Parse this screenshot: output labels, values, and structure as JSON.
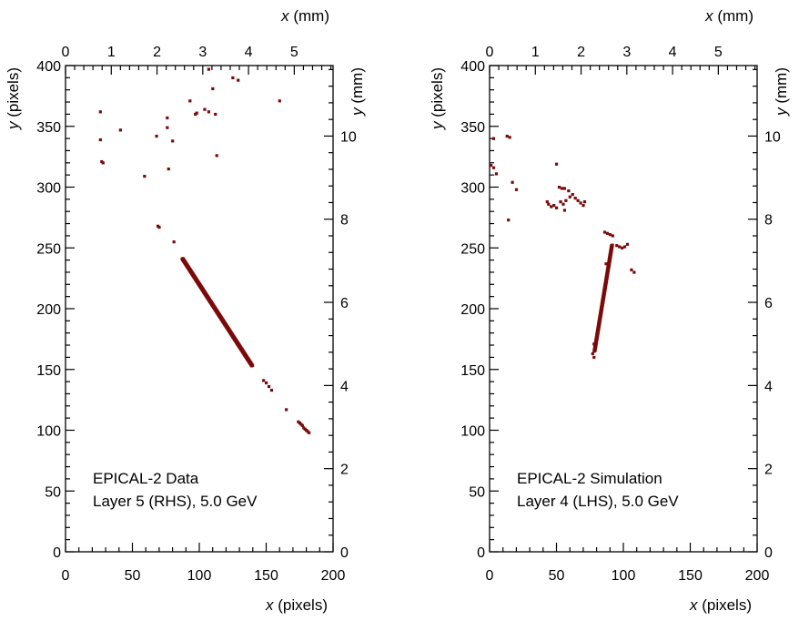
{
  "chart_data": [
    {
      "type": "scatter",
      "panel": "left",
      "annotation": [
        "EPICAL-2 Data",
        "Layer 5 (RHS), 5.0 GeV"
      ],
      "xlabel_bottom": {
        "var": "x",
        "unit": "(pixels)"
      },
      "ylabel_left": {
        "var": "y",
        "unit": "(pixels)"
      },
      "xlabel_top": {
        "var": "x",
        "unit": "(mm)"
      },
      "ylabel_right": {
        "var": "y",
        "unit": "(mm)"
      },
      "xlim": [
        0,
        200
      ],
      "ylim": [
        0,
        400
      ],
      "x_ticks": [
        "0",
        "50",
        "100",
        "150",
        "200"
      ],
      "y_ticks": [
        "0",
        "50",
        "100",
        "150",
        "200",
        "250",
        "300",
        "350",
        "400"
      ],
      "x_mm_ticks": [
        "0",
        "1",
        "2",
        "3",
        "4",
        "5"
      ],
      "y_mm_ticks": [
        "0",
        "2",
        "4",
        "6",
        "8",
        "10"
      ],
      "point_color": "#7a0a0a",
      "points": [
        [
          26,
          362
        ],
        [
          26,
          339
        ],
        [
          27,
          321
        ],
        [
          28,
          320
        ],
        [
          41,
          347
        ],
        [
          59,
          309
        ],
        [
          68,
          342
        ],
        [
          69,
          268
        ],
        [
          70,
          267
        ],
        [
          76,
          357
        ],
        [
          76,
          349
        ],
        [
          77,
          315
        ],
        [
          80,
          338
        ],
        [
          81,
          255
        ],
        [
          93,
          371
        ],
        [
          97,
          360
        ],
        [
          98,
          361
        ],
        [
          104,
          364
        ],
        [
          107,
          397
        ],
        [
          107,
          362
        ],
        [
          110,
          381
        ],
        [
          112,
          360
        ],
        [
          113,
          326
        ],
        [
          125,
          390
        ],
        [
          129,
          388
        ],
        [
          160,
          371
        ],
        [
          165,
          117
        ],
        [
          154,
          133
        ],
        [
          152,
          136
        ],
        [
          150,
          139
        ],
        [
          148,
          141
        ],
        [
          174,
          107
        ],
        [
          175,
          106
        ],
        [
          176,
          105
        ],
        [
          177,
          104
        ],
        [
          178,
          102
        ],
        [
          179,
          101
        ],
        [
          180,
          100
        ],
        [
          181,
          99
        ],
        [
          182,
          98
        ]
      ],
      "track": {
        "x_start": 87,
        "y_start": 241,
        "x_end": 139,
        "y_end": 153,
        "n": 110
      }
    },
    {
      "type": "scatter",
      "panel": "right",
      "annotation": [
        "EPICAL-2 Simulation",
        "Layer 4 (LHS), 5.0 GeV"
      ],
      "xlabel_bottom": {
        "var": "x",
        "unit": "(pixels)"
      },
      "ylabel_left": {
        "var": "y",
        "unit": "(pixels)"
      },
      "xlabel_top": {
        "var": "x",
        "unit": "(mm)"
      },
      "ylabel_right": {
        "var": "y",
        "unit": "(mm)"
      },
      "xlim": [
        0,
        200
      ],
      "ylim": [
        0,
        400
      ],
      "x_ticks": [
        "0",
        "50",
        "100",
        "150",
        "200"
      ],
      "y_ticks": [
        "0",
        "50",
        "100",
        "150",
        "200",
        "250",
        "300",
        "350",
        "400"
      ],
      "x_mm_ticks": [
        "0",
        "1",
        "2",
        "3",
        "4",
        "5"
      ],
      "y_mm_ticks": [
        "0",
        "2",
        "4",
        "6",
        "8",
        "10"
      ],
      "point_color": "#7a0a0a",
      "points": [
        [
          1,
          318
        ],
        [
          3,
          316
        ],
        [
          3,
          340
        ],
        [
          5,
          311
        ],
        [
          13,
          342
        ],
        [
          15,
          341
        ],
        [
          14,
          273
        ],
        [
          17,
          304
        ],
        [
          20,
          298
        ],
        [
          43,
          288
        ],
        [
          44,
          286
        ],
        [
          46,
          284
        ],
        [
          48,
          285
        ],
        [
          50,
          283
        ],
        [
          50,
          319
        ],
        [
          52,
          300
        ],
        [
          53,
          288
        ],
        [
          54,
          299
        ],
        [
          55,
          286
        ],
        [
          56,
          299
        ],
        [
          57,
          289
        ],
        [
          56,
          281
        ],
        [
          59,
          297
        ],
        [
          60,
          292
        ],
        [
          62,
          294
        ],
        [
          64,
          291
        ],
        [
          66,
          289
        ],
        [
          68,
          287
        ],
        [
          70,
          285
        ],
        [
          71,
          288
        ],
        [
          86,
          263
        ],
        [
          88,
          262
        ],
        [
          90,
          261
        ],
        [
          92,
          260
        ],
        [
          95,
          252
        ],
        [
          97,
          251
        ],
        [
          99,
          250
        ],
        [
          101,
          251
        ],
        [
          103,
          253
        ],
        [
          106,
          232
        ],
        [
          108,
          230
        ],
        [
          77,
          163
        ],
        [
          78,
          160
        ],
        [
          78,
          171
        ],
        [
          79,
          168
        ],
        [
          87,
          237
        ]
      ],
      "track": {
        "x_start": 78,
        "y_start": 165,
        "x_end": 91,
        "y_end": 252,
        "n": 70
      }
    }
  ]
}
